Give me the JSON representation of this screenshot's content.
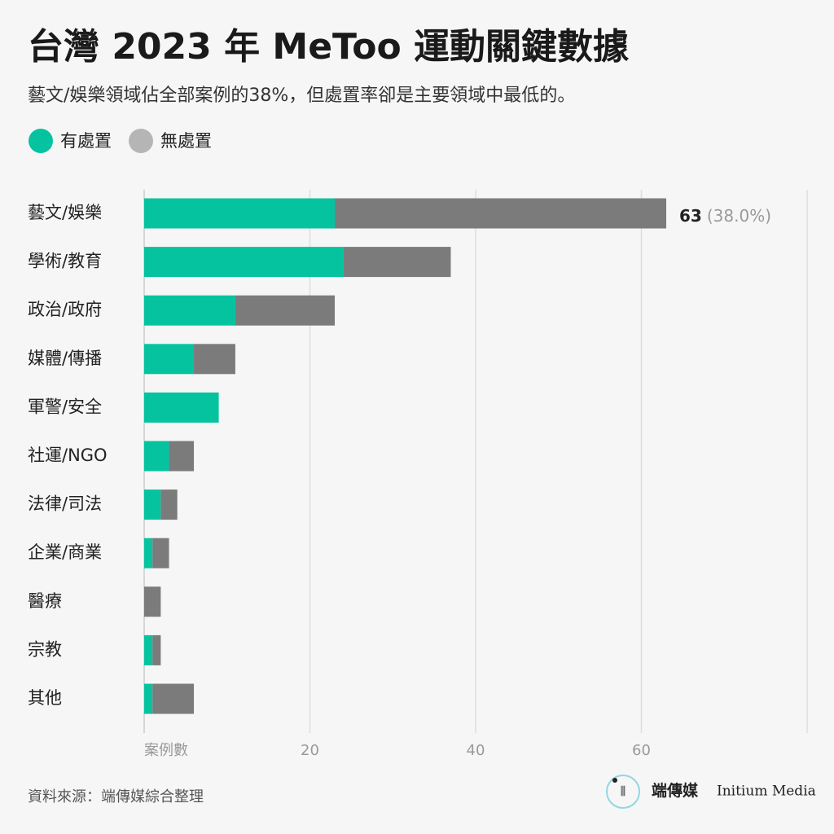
{
  "chart_data": {
    "type": "stacked-barh",
    "title": "台灣 2023 年 MeToo 運動關鍵數據",
    "subtitle": "藝文/娛樂領域佔全部案例的38%，但處置率卻是主要領域中最低的。",
    "categories": [
      "藝文/娛樂",
      "學術/教育",
      "政治/政府",
      "媒體/傳播",
      "軍警/安全",
      "社運/NGO",
      "法律/司法",
      "企業/商業",
      "醫療",
      "宗教",
      "其他"
    ],
    "series": [
      {
        "name": "有處置",
        "color": "#06c3a0",
        "values": [
          23,
          24,
          11,
          6,
          9,
          3,
          2,
          1,
          0,
          1,
          1
        ]
      },
      {
        "name": "無處置",
        "color": "#7b7b7b",
        "values": [
          40,
          13,
          12,
          5,
          0,
          3,
          2,
          2,
          2,
          1,
          5
        ]
      }
    ],
    "annotation": {
      "total": 63,
      "share": "(38.0%)"
    },
    "xlabel": "案例數",
    "xlim": [
      0,
      80
    ],
    "xticks": [
      20,
      40,
      60
    ],
    "grid": true,
    "source": "資料來源：端傳媒綜合整理",
    "brand": {
      "name": "端傳媒",
      "name_en": "Initium Media"
    }
  }
}
